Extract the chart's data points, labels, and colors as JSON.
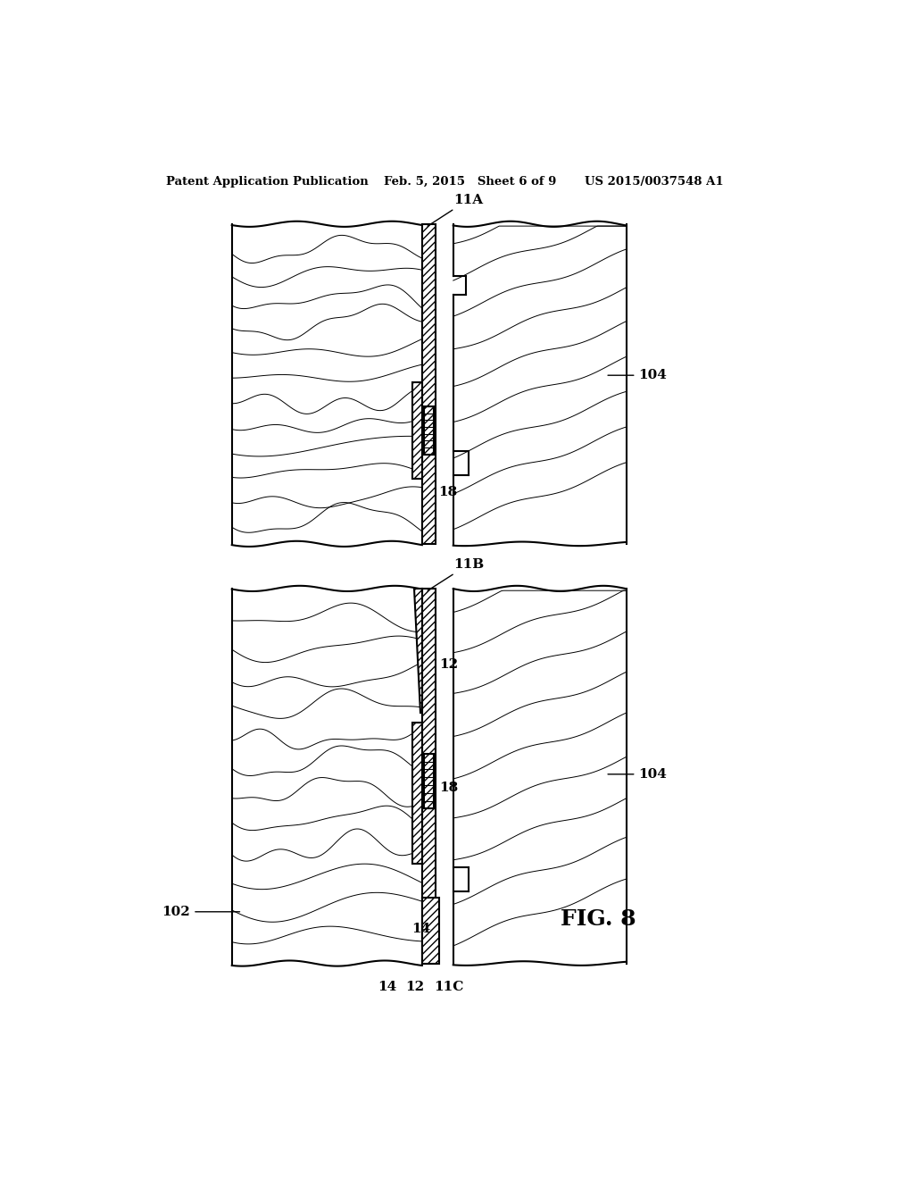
{
  "title_left": "Patent Application Publication",
  "title_mid": "Feb. 5, 2015   Sheet 6 of 9",
  "title_right": "US 2015/0037548 A1",
  "fig_label": "FIG. 8",
  "bg_color": "#ffffff",
  "line_color": "#000000"
}
